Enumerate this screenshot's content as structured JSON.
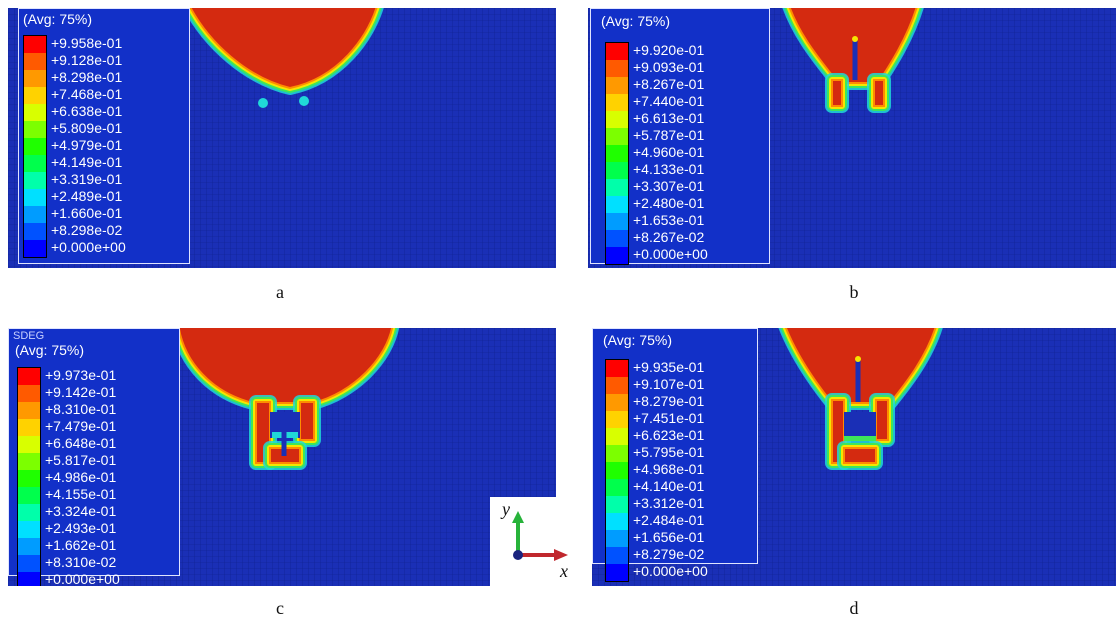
{
  "panels": [
    {
      "id": "a",
      "caption": "a",
      "legend_title": "(Avg: 75%)",
      "legend_variable": "",
      "legend_values": [
        "+9.958e-01",
        "+9.128e-01",
        "+8.298e-01",
        "+7.468e-01",
        "+6.638e-01",
        "+5.809e-01",
        "+4.979e-01",
        "+4.149e-01",
        "+3.319e-01",
        "+2.489e-01",
        "+1.660e-01",
        "+8.298e-02",
        "+0.000e+00"
      ]
    },
    {
      "id": "b",
      "caption": "b",
      "legend_title": "(Avg: 75%)",
      "legend_variable": "",
      "legend_values": [
        "+9.920e-01",
        "+9.093e-01",
        "+8.267e-01",
        "+7.440e-01",
        "+6.613e-01",
        "+5.787e-01",
        "+4.960e-01",
        "+4.133e-01",
        "+3.307e-01",
        "+2.480e-01",
        "+1.653e-01",
        "+8.267e-02",
        "+0.000e+00"
      ]
    },
    {
      "id": "c",
      "caption": "c",
      "legend_title": "(Avg: 75%)",
      "legend_variable": "SDEG",
      "legend_values": [
        "+9.973e-01",
        "+9.142e-01",
        "+8.310e-01",
        "+7.479e-01",
        "+6.648e-01",
        "+5.817e-01",
        "+4.986e-01",
        "+4.155e-01",
        "+3.324e-01",
        "+2.493e-01",
        "+1.662e-01",
        "+8.310e-02",
        "+0.000e+00"
      ]
    },
    {
      "id": "d",
      "caption": "d",
      "legend_title": "(Avg: 75%)",
      "legend_variable": "",
      "legend_values": [
        "+9.935e-01",
        "+9.107e-01",
        "+8.279e-01",
        "+7.451e-01",
        "+6.623e-01",
        "+5.795e-01",
        "+4.968e-01",
        "+4.140e-01",
        "+3.312e-01",
        "+2.484e-01",
        "+1.656e-01",
        "+8.279e-02",
        "+0.000e+00"
      ]
    }
  ],
  "colorbar": [
    "#ff0000",
    "#ff5a00",
    "#ff9900",
    "#ffd200",
    "#d8ff00",
    "#7cff00",
    "#1fff00",
    "#00ff4c",
    "#00ffaa",
    "#00e0ff",
    "#009cff",
    "#0052ff",
    "#0000ff"
  ],
  "field_colors": {
    "background": "#1a2fb6",
    "damaged": "#d42a10",
    "edge_orange": "#ff8c00",
    "edge_yellow": "#f5e600",
    "edge_green": "#3ee65a",
    "edge_cyan": "#20d8d8",
    "crack": "#1a2fb6"
  },
  "axes": {
    "x_label": "x",
    "y_label": "y",
    "x_color": "#c0272d",
    "y_color": "#27b33a",
    "origin_color": "#1a237e"
  }
}
